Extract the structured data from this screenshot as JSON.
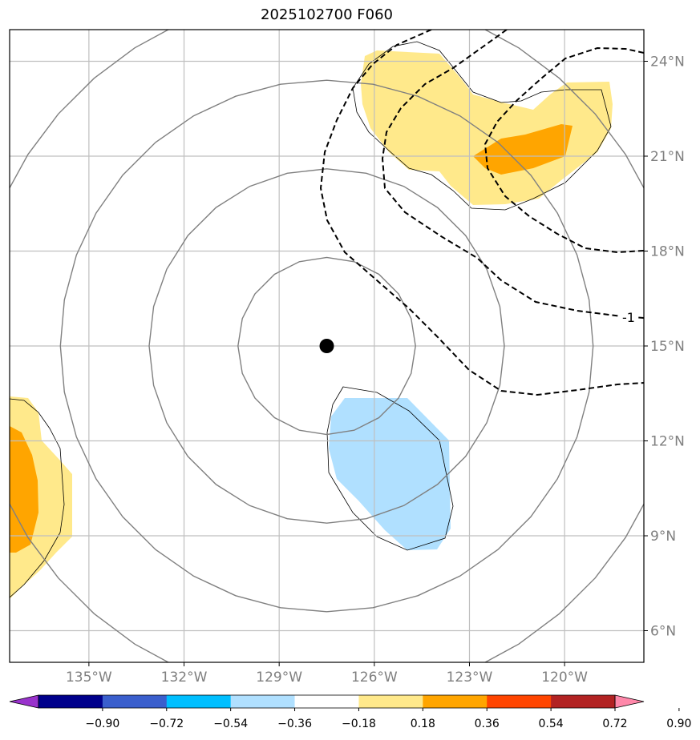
{
  "title": "2025102700 F060",
  "map": {
    "projection": "lat-lon",
    "lon_range": [
      -137.5,
      -117.5
    ],
    "lat_range": [
      5,
      25
    ],
    "lon_ticks": [
      -135,
      -132,
      -129,
      -126,
      -123,
      -120
    ],
    "lon_tick_labels": [
      "135°W",
      "132°W",
      "129°W",
      "126°W",
      "123°W",
      "120°W"
    ],
    "lat_ticks": [
      6,
      9,
      12,
      15,
      18,
      21,
      24
    ],
    "lat_tick_labels": [
      "6°N",
      "9°N",
      "12°N",
      "15°N",
      "18°N",
      "21°N",
      "24°N"
    ],
    "gridlines": true,
    "center_marker": {
      "lon": -127.5,
      "lat": 15.0
    },
    "range_rings_deg": [
      2.8,
      5.6,
      8.4,
      11.2
    ],
    "contour_label": "-1"
  },
  "colorbar": {
    "ticks": [
      "−0.90",
      "−0.72",
      "−0.54",
      "−0.36",
      "−0.18",
      "0.18",
      "0.36",
      "0.54",
      "0.72",
      "0.90"
    ],
    "colors": [
      "#9932cc",
      "#00008b",
      "#3a5fcd",
      "#00bfff",
      "#b0e0ff",
      "#ffffff",
      "#ffe98b",
      "#ffa500",
      "#ff4500",
      "#b22222",
      "#ff88aa"
    ]
  },
  "fields": {
    "positive": {
      "color_weak": "#ffe98b",
      "color_strong": "#ffa500"
    },
    "negative": {
      "color_weak": "#b0e0ff"
    }
  }
}
